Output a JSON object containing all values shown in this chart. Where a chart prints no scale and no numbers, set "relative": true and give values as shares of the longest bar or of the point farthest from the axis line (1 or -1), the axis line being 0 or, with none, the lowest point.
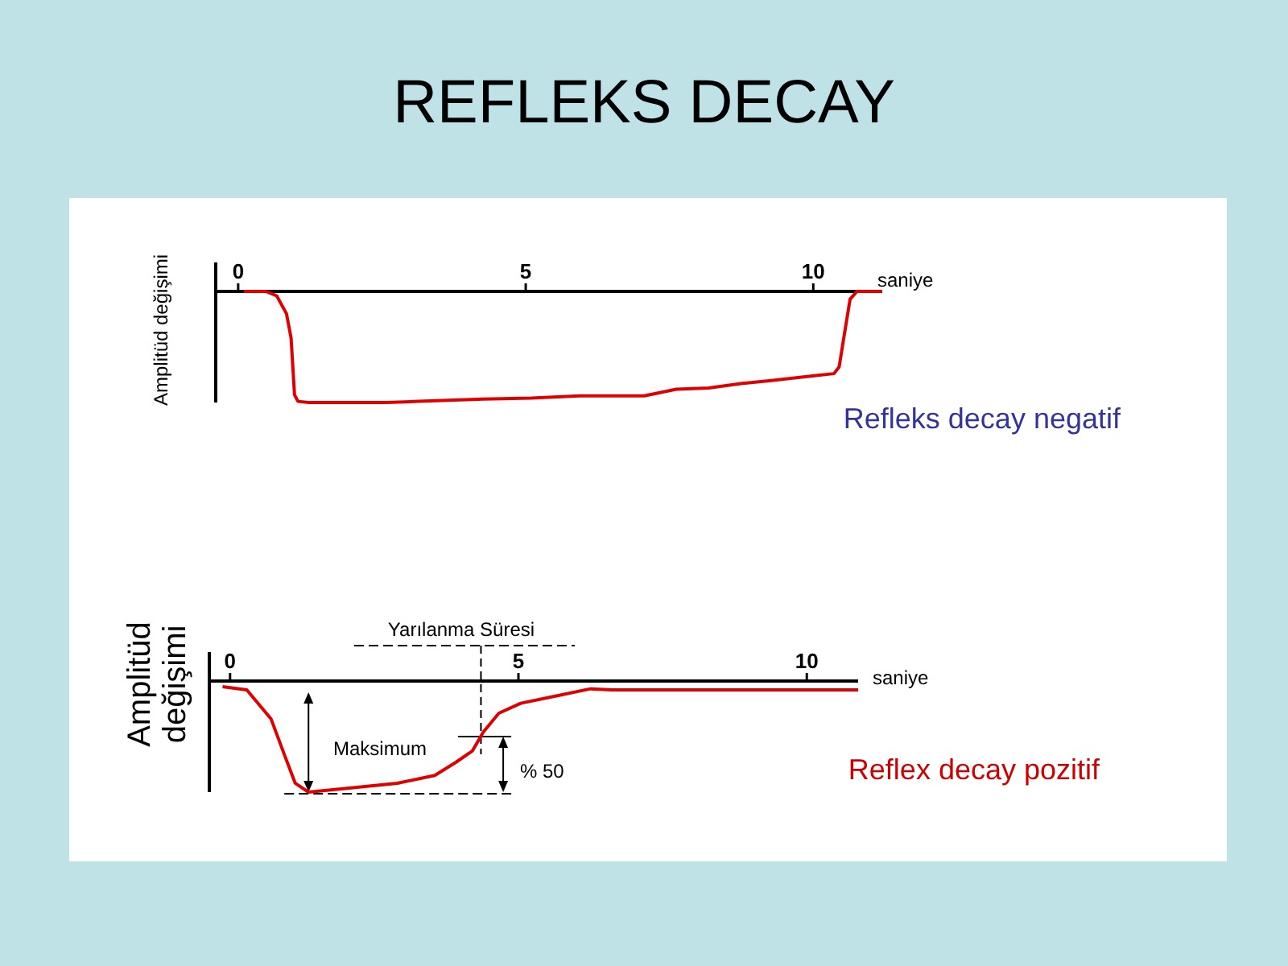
{
  "chart_data": [
    {
      "type": "line",
      "title": "REFLEKS DECAY",
      "xlabel": "saniye",
      "ylabel": "Amplitüd değişimi",
      "relative": true,
      "xlim": [
        -0.39,
        11.2
      ],
      "xticks": [
        0,
        5,
        10
      ],
      "annotations": [
        "Refleks decay negatif"
      ],
      "series": [
        {
          "color": "#e00000",
          "x": [
            0.1,
            0.48,
            0.67,
            0.84,
            0.92,
            0.98,
            1.04,
            1.23,
            2.58,
            3.14,
            4.26,
            5.1,
            5.94,
            7.06,
            7.62,
            8.18,
            8.74,
            9.3,
            10.36,
            10.45,
            10.53,
            10.64,
            10.76,
            11.2
          ],
          "values": [
            0,
            0,
            -0.04,
            -0.2,
            -0.42,
            -0.93,
            -0.99,
            -1,
            -1,
            -0.99,
            -0.97,
            -0.96,
            -0.94,
            -0.94,
            -0.88,
            -0.87,
            -0.83,
            -0.8,
            -0.74,
            -0.68,
            -0.42,
            -0.07,
            0,
            0
          ]
        }
      ]
    },
    {
      "type": "line",
      "xlabel": "saniye",
      "ylabel": "Amplitüd değişimi",
      "relative": true,
      "xlim": [
        -0.36,
        10.89
      ],
      "xticks": [
        0,
        5,
        10
      ],
      "annotations": [
        "Yarılanma Süresi",
        "Maksimum",
        "% 50",
        "Reflex decay pozitif"
      ],
      "ref_lines": [
        {
          "axis": "x",
          "value": 4.35,
          "color": "#000000",
          "line_style": "dashed"
        }
      ],
      "series": [
        {
          "color": "#e00000",
          "x": [
            -0.13,
            0.29,
            0.71,
            0.94,
            1.13,
            1.36,
            1.96,
            2.9,
            3.55,
            3.92,
            4.2,
            4.39,
            4.66,
            5.04,
            5.69,
            6.25,
            6.62,
            10.89
          ],
          "values": [
            -0.05,
            -0.08,
            -0.34,
            -0.66,
            -0.92,
            -1,
            -0.97,
            -0.92,
            -0.85,
            -0.73,
            -0.63,
            -0.46,
            -0.29,
            -0.2,
            -0.13,
            -0.07,
            -0.08,
            -0.08
          ]
        }
      ]
    }
  ]
}
